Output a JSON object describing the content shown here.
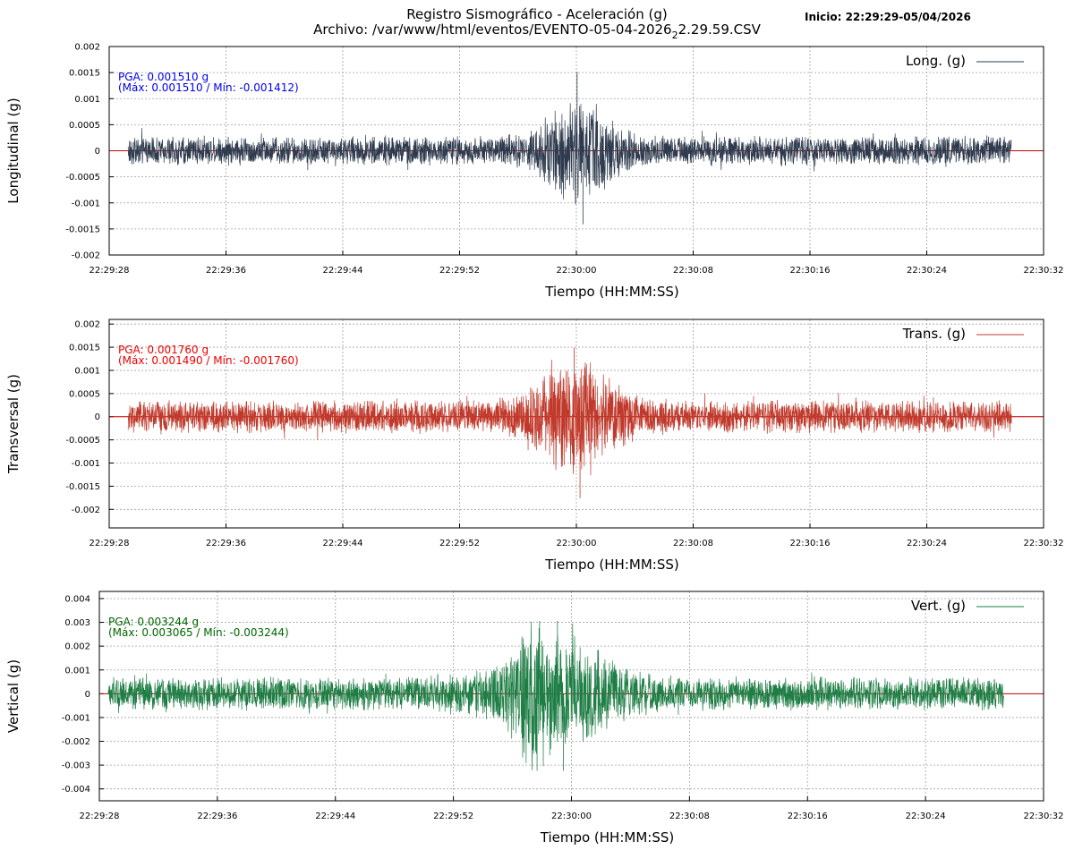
{
  "header": {
    "title_line1": "Registro Sismográfico - Aceleración (g)",
    "title_line2_prefix": "Archivo: /var/www/html/eventos/EVENTO-05-04-2026",
    "title_line2_sub": "2",
    "title_line2_suffix": "2.29.59.CSV",
    "start_label": "Inicio: 22:29:29-05/04/2026"
  },
  "chart_data": [
    {
      "type": "line",
      "name": "longitudinal",
      "title": "",
      "xlabel": "Tiempo (HH:MM:SS)",
      "ylabel": "Longitudinal (g)",
      "legend": "Long. (g)",
      "legend_position": "top-right",
      "color": "#2e3b4e",
      "zero_line_color": "#cc0000",
      "grid": true,
      "x_ticks": [
        "22:29:28",
        "22:29:36",
        "22:29:44",
        "22:29:52",
        "22:30:00",
        "22:30:08",
        "22:30:16",
        "22:30:24",
        "22:30:32"
      ],
      "xlim_seconds": [
        0,
        64
      ],
      "data_range_seconds": [
        1.3,
        61.8
      ],
      "ylim": [
        -0.002,
        0.002
      ],
      "y_ticks": [
        0.002,
        0.0015,
        0.001,
        0.0005,
        0,
        -0.0005,
        -0.001,
        -0.0015,
        -0.002
      ],
      "y_tick_labels": [
        "0.002",
        "0.0015",
        "0.001",
        "0.0005",
        "0",
        "-0.0005",
        "-0.001",
        "-0.0015",
        "-0.002"
      ],
      "annotation_line1": "PGA: 0.001510 g",
      "annotation_line2": "(Máx: 0.001510 / Mín: -0.001412)",
      "annotation_color": "#0000ee",
      "pga": 0.00151,
      "max": 0.00151,
      "min": -0.001412,
      "noise_amplitude": 0.0003,
      "burst_center_seconds": 32.2,
      "burst_width_seconds": 2.6,
      "burst_gain": 2.6
    },
    {
      "type": "line",
      "name": "transversal",
      "title": "",
      "xlabel": "Tiempo (HH:MM:SS)",
      "ylabel": "Transversal (g)",
      "legend": "Trans. (g)",
      "legend_position": "top-right",
      "color": "#c0392b",
      "zero_line_color": "#cc0000",
      "grid": true,
      "x_ticks": [
        "22:29:28",
        "22:29:36",
        "22:29:44",
        "22:29:52",
        "22:30:00",
        "22:30:08",
        "22:30:16",
        "22:30:24",
        "22:30:32"
      ],
      "xlim_seconds": [
        0,
        64
      ],
      "data_range_seconds": [
        1.3,
        61.8
      ],
      "ylim": [
        -0.0024,
        0.0021
      ],
      "y_ticks": [
        0.002,
        0.0015,
        0.001,
        0.0005,
        0,
        -0.0005,
        -0.001,
        -0.0015,
        -0.002
      ],
      "y_tick_labels": [
        "0.002",
        "0.0015",
        "0.001",
        "0.0005",
        "0",
        "-0.0005",
        "-0.001",
        "-0.0015",
        "-0.002"
      ],
      "annotation_line1": "PGA: 0.001760 g",
      "annotation_line2": "(Máx: 0.001490 / Mín: -0.001760)",
      "annotation_color": "#ee0000",
      "pga": 0.00176,
      "max": 0.00149,
      "min": -0.00176,
      "noise_amplitude": 0.00038,
      "burst_center_seconds": 32.0,
      "burst_width_seconds": 3.0,
      "burst_gain": 2.7
    },
    {
      "type": "line",
      "name": "vertical",
      "title": "",
      "xlabel": "Tiempo (HH:MM:SS)",
      "ylabel": "Vertical (g)",
      "legend": "Vert. (g)",
      "legend_position": "top-right",
      "color": "#1e7e45",
      "zero_line_color": "#cc0000",
      "grid": true,
      "x_ticks": [
        "22:29:28",
        "22:29:36",
        "22:29:44",
        "22:29:52",
        "22:30:00",
        "22:30:08",
        "22:30:16",
        "22:30:24",
        "22:30:32"
      ],
      "xlim_seconds": [
        0,
        64
      ],
      "data_range_seconds": [
        0.6,
        61.3
      ],
      "ylim": [
        -0.0045,
        0.0043
      ],
      "y_ticks": [
        0.004,
        0.003,
        0.002,
        0.001,
        0,
        -0.001,
        -0.002,
        -0.003,
        -0.004
      ],
      "y_tick_labels": [
        "0.004",
        "0.003",
        "0.002",
        "0.001",
        "0",
        "-0.001",
        "-0.002",
        "-0.003",
        "-0.004"
      ],
      "annotation_line1": "PGA: 0.003244 g",
      "annotation_line2": "(Máx: 0.003065 / Mín: -0.003244)",
      "annotation_color": "#006600",
      "pga": 0.003244,
      "max": 0.003065,
      "min": -0.003244,
      "noise_amplitude": 0.00075,
      "burst_center_seconds": 31.2,
      "burst_width_seconds": 4.2,
      "burst_gain": 2.4
    }
  ]
}
